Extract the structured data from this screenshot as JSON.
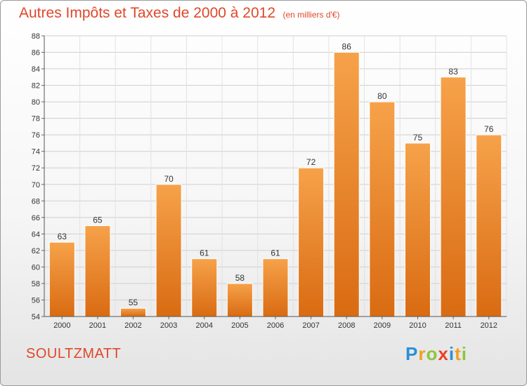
{
  "chart_data": {
    "type": "bar",
    "title": "Autres Impôts et Taxes de 2000 à 2012",
    "unit": "(en milliers d'€)",
    "categories": [
      "2000",
      "2001",
      "2002",
      "2003",
      "2004",
      "2005",
      "2006",
      "2007",
      "2008",
      "2009",
      "2010",
      "2011",
      "2012"
    ],
    "values": [
      63,
      65,
      55,
      70,
      61,
      58,
      61,
      72,
      86,
      80,
      75,
      83,
      76
    ],
    "ylim": [
      54,
      88
    ],
    "yticks": [
      54,
      56,
      58,
      60,
      62,
      64,
      66,
      68,
      70,
      72,
      74,
      76,
      78,
      80,
      82,
      84,
      86,
      88
    ],
    "grid": true,
    "xlabel": "",
    "ylabel": "",
    "bar_color": "#f0922f",
    "title_color": "#e0472a"
  },
  "footer": {
    "commune": "SOULTZMATT",
    "logo": {
      "text": "Proxiti",
      "letters": [
        "P",
        "r",
        "o",
        "x",
        "i",
        "t",
        "i"
      ],
      "colors": [
        "#2b8fd6",
        "#f0a020",
        "#8cc63f",
        "#e8412a",
        "#2b8fd6",
        "#f0a020",
        "#8cc63f"
      ]
    }
  }
}
